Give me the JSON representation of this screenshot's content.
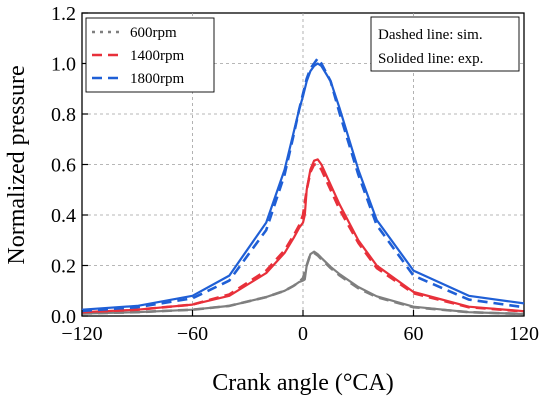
{
  "chart_data": {
    "type": "line",
    "xlabel": "Crank angle (°CA)",
    "ylabel": "Normalized pressure",
    "xlim": [
      -120,
      120
    ],
    "ylim": [
      0.0,
      1.2
    ],
    "xticks": [
      -120,
      -60,
      0,
      60,
      120
    ],
    "xtick_labels": [
      "−120",
      "−60",
      "0",
      "60",
      "120"
    ],
    "yticks": [
      0.0,
      0.2,
      0.4,
      0.6,
      0.8,
      1.0,
      1.2
    ],
    "ytick_labels": [
      "0.0",
      "0.2",
      "0.4",
      "0.6",
      "0.8",
      "1.0",
      "1.2"
    ],
    "grid": true,
    "legend_position": "top-left",
    "annotations": [
      "Dashed line: sim.",
      "Solided line: exp."
    ],
    "series": [
      {
        "name": "600rpm",
        "color": "#7f7f7f",
        "style": "dashed",
        "x": [
          -120,
          -90,
          -60,
          -40,
          -20,
          -10,
          -5,
          -2,
          0,
          2,
          4,
          6,
          8,
          10,
          15,
          20,
          30,
          40,
          60,
          90,
          120
        ],
        "values": [
          0.01,
          0.015,
          0.025,
          0.04,
          0.075,
          0.1,
          0.12,
          0.135,
          0.15,
          0.2,
          0.245,
          0.25,
          0.24,
          0.225,
          0.19,
          0.16,
          0.11,
          0.075,
          0.035,
          0.015,
          0.008
        ]
      },
      {
        "name": "600rpm",
        "color": "#7f7f7f",
        "style": "solid",
        "x": [
          -120,
          -90,
          -60,
          -40,
          -20,
          -10,
          -5,
          -2,
          0,
          1,
          2,
          4,
          6,
          8,
          10,
          15,
          20,
          30,
          40,
          60,
          90,
          120
        ],
        "values": [
          0.01,
          0.015,
          0.025,
          0.04,
          0.075,
          0.1,
          0.12,
          0.135,
          0.14,
          0.145,
          0.2,
          0.245,
          0.255,
          0.245,
          0.23,
          0.195,
          0.165,
          0.115,
          0.078,
          0.037,
          0.015,
          0.008
        ]
      },
      {
        "name": "1400rpm",
        "color": "#e8303a",
        "style": "dashed",
        "x": [
          -120,
          -90,
          -60,
          -40,
          -20,
          -10,
          -5,
          -2,
          0,
          2,
          4,
          6,
          8,
          10,
          15,
          20,
          30,
          40,
          60,
          90,
          120
        ],
        "values": [
          0.015,
          0.025,
          0.045,
          0.085,
          0.18,
          0.26,
          0.32,
          0.36,
          0.4,
          0.5,
          0.57,
          0.6,
          0.6,
          0.58,
          0.5,
          0.42,
          0.29,
          0.19,
          0.09,
          0.035,
          0.018
        ]
      },
      {
        "name": "1400rpm",
        "color": "#e8303a",
        "style": "solid",
        "x": [
          -120,
          -90,
          -60,
          -40,
          -20,
          -10,
          -5,
          -2,
          0,
          1,
          2,
          4,
          6,
          8,
          10,
          15,
          20,
          30,
          40,
          60,
          90,
          120
        ],
        "values": [
          0.015,
          0.025,
          0.045,
          0.08,
          0.17,
          0.25,
          0.31,
          0.35,
          0.37,
          0.4,
          0.5,
          0.58,
          0.615,
          0.62,
          0.6,
          0.52,
          0.44,
          0.3,
          0.2,
          0.095,
          0.037,
          0.019
        ]
      },
      {
        "name": "1800rpm",
        "color": "#1f5fd6",
        "style": "dashed",
        "x": [
          -120,
          -90,
          -60,
          -40,
          -20,
          -10,
          -5,
          -2,
          0,
          2,
          4,
          6,
          8,
          10,
          15,
          20,
          30,
          40,
          60,
          90,
          120
        ],
        "values": [
          0.02,
          0.035,
          0.07,
          0.14,
          0.34,
          0.56,
          0.72,
          0.82,
          0.88,
          0.94,
          0.98,
          1.0,
          1.02,
          1.0,
          0.93,
          0.8,
          0.56,
          0.36,
          0.16,
          0.065,
          0.035
        ]
      },
      {
        "name": "1800rpm",
        "color": "#1f5fd6",
        "style": "solid",
        "x": [
          -120,
          -90,
          -60,
          -40,
          -20,
          -10,
          -5,
          -2,
          0,
          2,
          4,
          6,
          8,
          10,
          15,
          20,
          30,
          40,
          60,
          90,
          120
        ],
        "values": [
          0.025,
          0.04,
          0.08,
          0.16,
          0.37,
          0.58,
          0.73,
          0.82,
          0.87,
          0.93,
          0.97,
          0.99,
          1.0,
          0.99,
          0.93,
          0.82,
          0.58,
          0.38,
          0.18,
          0.08,
          0.05
        ]
      }
    ]
  }
}
